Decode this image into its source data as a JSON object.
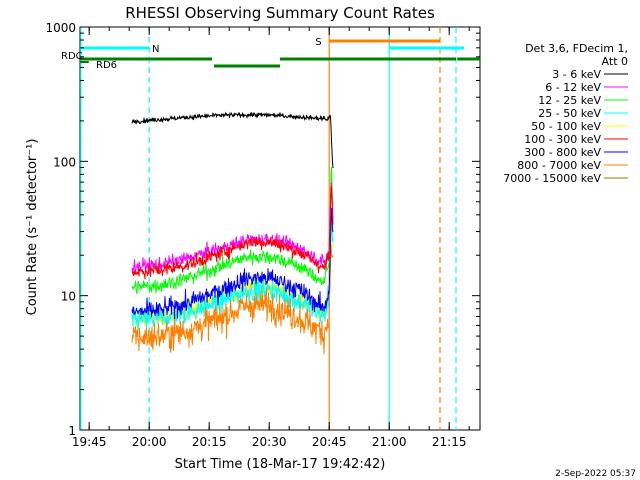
{
  "chart_data": {
    "type": "line",
    "title": "RHESSI Observing Summary Count Rates",
    "xlabel": "Start Time (18-Mar-17 19:42:42)",
    "ylabel": "Count Rate (s⁻¹ detector⁻¹)",
    "yscale": "log",
    "ylim": [
      1,
      1000
    ],
    "xlim_minutes_after_start": [
      0,
      100
    ],
    "x_unit": "minutes after 19:42:42",
    "x_ticks": [
      {
        "label": "19:45",
        "minute": 2.3
      },
      {
        "label": "20:00",
        "minute": 17.3
      },
      {
        "label": "20:15",
        "minute": 32.3
      },
      {
        "label": "20:30",
        "minute": 47.3
      },
      {
        "label": "20:45",
        "minute": 62.3
      },
      {
        "label": "21:00",
        "minute": 77.3
      },
      {
        "label": "21:15",
        "minute": 92.3
      }
    ],
    "y_ticks": [
      {
        "label": "1",
        "value": 1
      },
      {
        "label": "10",
        "value": 10
      },
      {
        "label": "100",
        "value": 100
      },
      {
        "label": "1000",
        "value": 1000
      }
    ],
    "legend_header": [
      "Det 3,6, FDecim 1,",
      "Att 0"
    ],
    "series": [
      {
        "name": "3 - 6 keV",
        "color": "#000000",
        "x": [
          13,
          20,
          27,
          35,
          42,
          48,
          55,
          61,
          62,
          62.3,
          62.6,
          63.2
        ],
        "values": [
          198,
          205,
          213,
          220,
          222,
          221,
          214,
          208,
          204,
          215,
          220,
          90
        ]
      },
      {
        "name": "6 - 12 keV",
        "color": "#ff00ff",
        "x": [
          13,
          20,
          27,
          35,
          42,
          48,
          55,
          61,
          62.3,
          62.8,
          63.2
        ],
        "values": [
          16.5,
          17,
          19,
          22.5,
          26,
          26.5,
          22.5,
          17.5,
          22,
          75,
          40
        ]
      },
      {
        "name": "12 - 25 keV",
        "color": "#00ff00",
        "x": [
          13,
          20,
          27,
          35,
          42,
          48,
          55,
          61,
          62.3,
          62.8,
          63.2
        ],
        "values": [
          11.5,
          12,
          13.5,
          16.5,
          19.5,
          19.5,
          16.5,
          12.5,
          18,
          95,
          50
        ]
      },
      {
        "name": "25 - 50 keV",
        "color": "#00ffff",
        "x": [
          13,
          20,
          27,
          35,
          42,
          48,
          55,
          61,
          62.3,
          62.8,
          63.2
        ],
        "values": [
          6.5,
          6.8,
          7.5,
          9,
          11,
          11,
          9,
          7,
          10,
          40,
          25
        ]
      },
      {
        "name": "50 - 100 keV",
        "color": "#ffff00",
        "x": [
          13,
          20,
          27,
          35,
          42,
          48,
          55,
          61,
          62.3,
          62.8,
          63.2
        ],
        "values": [
          6.8,
          7,
          7.8,
          9.5,
          11.5,
          11.5,
          9.5,
          7.2,
          10,
          35,
          22
        ]
      },
      {
        "name": "100 - 300 keV",
        "color": "#ff0000",
        "x": [
          13,
          20,
          27,
          35,
          42,
          48,
          55,
          61,
          62.3,
          62.8,
          63.2
        ],
        "values": [
          15,
          15.5,
          17,
          20.5,
          25,
          25,
          21,
          16,
          20,
          70,
          35
        ]
      },
      {
        "name": "300 - 800 keV",
        "color": "#0000ff",
        "x": [
          13,
          20,
          27,
          35,
          42,
          48,
          55,
          61,
          62.3,
          62.8,
          63.2
        ],
        "values": [
          7.5,
          7.8,
          8.8,
          11,
          13.5,
          13.5,
          11,
          8,
          11,
          45,
          28
        ]
      },
      {
        "name": "800 - 7000 keV",
        "color": "#ff8000",
        "x": [
          13,
          20,
          27,
          35,
          42,
          48,
          55,
          61,
          62.3,
          62.8,
          63.2
        ],
        "values": [
          4.8,
          5,
          5.5,
          6.8,
          8.5,
          8.5,
          6.8,
          5.2,
          7,
          25,
          18
        ]
      },
      {
        "name": "7000 - 15000 keV",
        "color": "#808000",
        "x": [],
        "values": []
      }
    ],
    "flags": [
      {
        "label": "N",
        "color": "#00ffff",
        "segments": [
          [
            0,
            17.3
          ],
          [
            77.3,
            96
          ]
        ]
      },
      {
        "label": "S",
        "color": "#ff8000",
        "segments": [
          [
            62.3,
            90
          ]
        ]
      }
    ],
    "dark_green_bars": {
      "color": "#008000",
      "labels": [
        {
          "text": "RDC",
          "at": 0
        },
        {
          "text": "RD6",
          "at": 2.5
        }
      ],
      "upper_segments": [
        [
          0,
          33
        ],
        [
          50,
          90
        ],
        [
          90,
          94
        ],
        [
          94.3,
          100
        ]
      ],
      "lower_segments": [
        [
          33.5,
          50
        ]
      ]
    },
    "vertical_lines": [
      {
        "minute": 0.2,
        "color": "#00ffff",
        "style": "solid"
      },
      {
        "minute": 17.3,
        "color": "#00ffff",
        "style": "dashed"
      },
      {
        "minute": 62.3,
        "color": "#ff8000",
        "style": "solid"
      },
      {
        "minute": 77.3,
        "color": "#00ffff",
        "style": "solid"
      },
      {
        "minute": 90,
        "color": "#ff8000",
        "style": "dashed"
      },
      {
        "minute": 94,
        "color": "#00ffff",
        "style": "dashed"
      }
    ],
    "footer": "2-Sep-2022 05:37"
  }
}
